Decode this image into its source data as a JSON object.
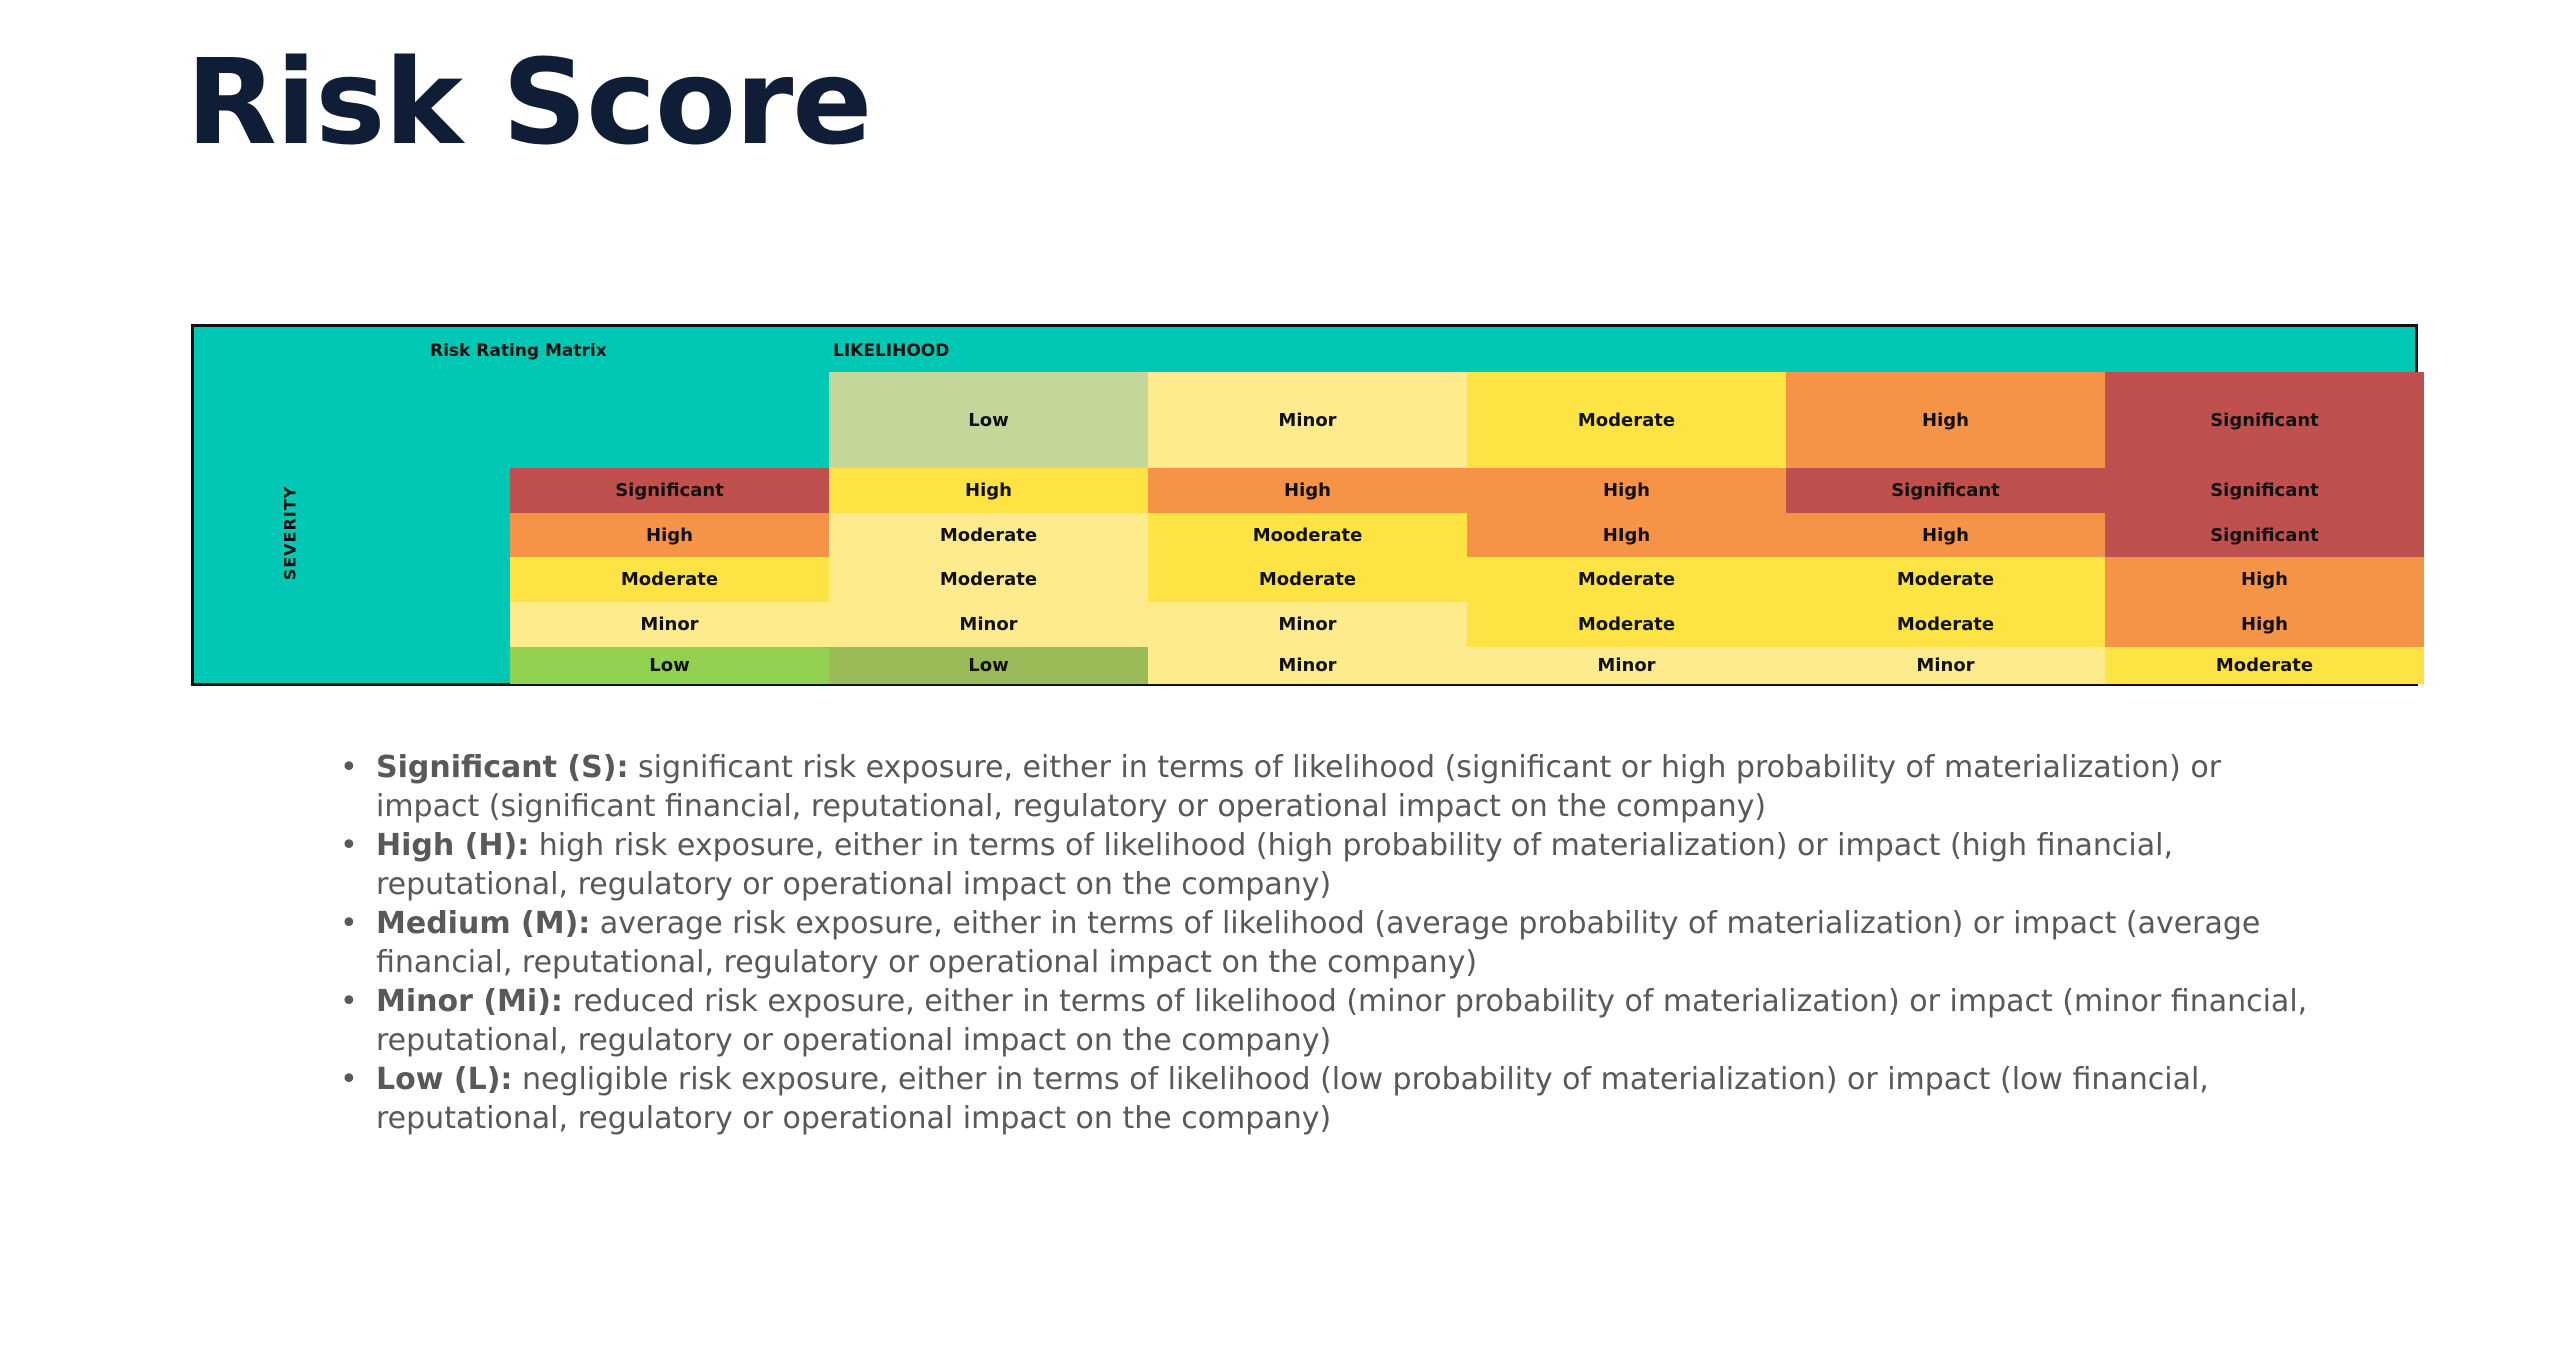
{
  "page": {
    "title": "Risk Score"
  },
  "matrix": {
    "title": "Risk Rating Matrix",
    "likelihood_label": "LIKELIHOOD",
    "severity_label": "SEVERITY",
    "likelihood_levels": [
      {
        "label": "Low",
        "color": "#c4d79b"
      },
      {
        "label": "Minor",
        "color": "#fdeb8e"
      },
      {
        "label": "Moderate",
        "color": "#fde343"
      },
      {
        "label": "High",
        "color": "#f59347"
      },
      {
        "label": "Significant",
        "color": "#c0504d"
      }
    ],
    "rows": [
      {
        "severity": {
          "label": "Significant",
          "color": "#c0504d"
        },
        "cells": [
          {
            "label": "High",
            "color": "#fde343"
          },
          {
            "label": "High",
            "color": "#f59347"
          },
          {
            "label": "High",
            "color": "#f59347"
          },
          {
            "label": "Significant",
            "color": "#c0504d"
          },
          {
            "label": "Significant",
            "color": "#c0504d"
          }
        ]
      },
      {
        "severity": {
          "label": "High",
          "color": "#f59347"
        },
        "cells": [
          {
            "label": "Moderate",
            "color": "#fdeb8e"
          },
          {
            "label": "Mooderate",
            "color": "#fde343"
          },
          {
            "label": "HIgh",
            "color": "#f59347"
          },
          {
            "label": "High",
            "color": "#f59347"
          },
          {
            "label": "Significant",
            "color": "#c0504d"
          }
        ]
      },
      {
        "severity": {
          "label": "Moderate",
          "color": "#fde343"
        },
        "cells": [
          {
            "label": "Moderate",
            "color": "#fdeb8e"
          },
          {
            "label": "Moderate",
            "color": "#fde343"
          },
          {
            "label": "Moderate",
            "color": "#fde343"
          },
          {
            "label": "Moderate",
            "color": "#fde343"
          },
          {
            "label": "High",
            "color": "#f59347"
          }
        ]
      },
      {
        "severity": {
          "label": "Minor",
          "color": "#fdeb8e"
        },
        "cells": [
          {
            "label": "Minor",
            "color": "#fdeb8e"
          },
          {
            "label": "Minor",
            "color": "#fdeb8e"
          },
          {
            "label": "Moderate",
            "color": "#fde343"
          },
          {
            "label": "Moderate",
            "color": "#fde343"
          },
          {
            "label": "High",
            "color": "#f59347"
          }
        ]
      },
      {
        "severity": {
          "label": "Low",
          "color": "#92d050"
        },
        "cells": [
          {
            "label": "Low",
            "color": "#9bbb59"
          },
          {
            "label": "Minor",
            "color": "#fdeb8e"
          },
          {
            "label": "Minor",
            "color": "#fdeb8e"
          },
          {
            "label": "Minor",
            "color": "#fdeb8e"
          },
          {
            "label": "Moderate",
            "color": "#fde343"
          }
        ]
      }
    ]
  },
  "definitions": [
    {
      "term": "Significant (S):",
      "text": " significant risk exposure, either in terms of likelihood (significant or high probability of materialization) or impact (significant financial, reputational, regulatory or operational impact on the company)"
    },
    {
      "term": "High (H):",
      "text": " high risk exposure, either in terms of likelihood (high probability of materialization) or impact (high financial, reputational, regulatory or operational impact on the company)"
    },
    {
      "term": "Medium (M):",
      "text": " average risk exposure, either in terms of likelihood (average probability of materialization) or impact (average financial, reputational, regulatory or operational impact on the company)"
    },
    {
      "term": "Minor (Mi):",
      "text": " reduced risk exposure, either in terms of likelihood (minor probability of materialization) or impact (minor financial, reputational, regulatory or operational impact on the company)"
    },
    {
      "term": "Low (L):",
      "text": " negligible risk exposure, either in terms of likelihood (low probability of materialization) or impact (low financial, reputational, regulatory or operational impact on the company)"
    }
  ]
}
